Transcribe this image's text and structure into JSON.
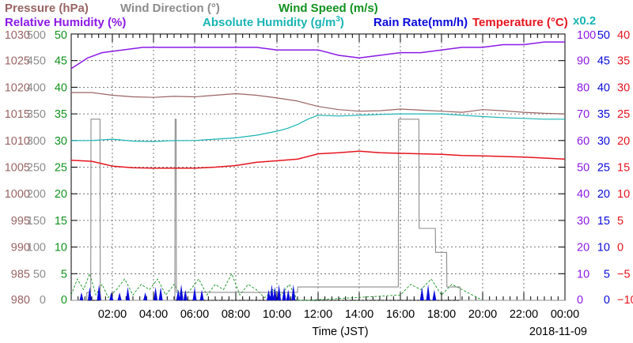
{
  "legend": {
    "pressure": "Pressure (hPa)",
    "wind_direction": "Wind Direction (°)",
    "wind_speed": "Wind Speed (m/s)",
    "relative_humidity": "Relative Humidity (%)",
    "absolute_humidity_pre": "Absolute Humidity (g/m",
    "absolute_humidity_sup": "3",
    "absolute_humidity_post": ")",
    "rain_rate": "Rain Rate(mm/h)",
    "temperature": "Temperature  (°C)",
    "scale_factor": "x0.2"
  },
  "colors": {
    "pressure": "#9a6464",
    "wind_direction": "#8c8c8c",
    "wind_speed": "#12921e",
    "relative_humidity": "#8b19e6",
    "absolute_humidity": "#19b4b4",
    "rain_rate": "#0a0adc",
    "temperature": "#e6141e",
    "grid": "#555555"
  },
  "chart_data": {
    "type": "line",
    "xlabel": "Time (JST)",
    "date": "2018-11-09",
    "x_ticks": [
      "02:00",
      "04:00",
      "06:00",
      "08:00",
      "10:00",
      "12:00",
      "14:00",
      "16:00",
      "18:00",
      "20:00",
      "22:00",
      "00:00"
    ],
    "xlim_hours": [
      0,
      24
    ],
    "axes": {
      "pressure": {
        "ticks": [
          "1030",
          "1025",
          "1020",
          "1015",
          "1010",
          "1005",
          "1000",
          "995",
          "990",
          "985",
          "980"
        ],
        "ylim": [
          980,
          1030
        ]
      },
      "wind_direction": {
        "ticks": [
          "500",
          "450",
          "400",
          "350",
          "300",
          "250",
          "200",
          "150",
          "100",
          "50",
          "0"
        ],
        "ylim": [
          0,
          500
        ]
      },
      "wind_speed": {
        "ticks": [
          "50",
          "45",
          "40",
          "35",
          "30",
          "25",
          "20",
          "15",
          "10",
          "5",
          "0"
        ],
        "ylim": [
          0,
          50
        ]
      },
      "relative_humidity": {
        "ticks": [
          "100",
          "90",
          "80",
          "70",
          "60",
          "50",
          "40",
          "30",
          "20",
          "10",
          "0"
        ],
        "ylim": [
          0,
          100
        ]
      },
      "rain_rate": {
        "ticks": [
          "50",
          "45",
          "40",
          "35",
          "30",
          "25",
          "20",
          "15",
          "10",
          "5",
          "0"
        ],
        "ylim": [
          0,
          50
        ]
      },
      "temperature": {
        "ticks": [
          "40",
          "35",
          "30",
          "25",
          "20",
          "15",
          "10",
          "5",
          "0",
          "−5",
          "−10"
        ],
        "ylim": [
          -10,
          40
        ]
      }
    },
    "series": [
      {
        "name": "Pressure (hPa)",
        "key": "pressure",
        "x": [
          0,
          1,
          2,
          3,
          4,
          5,
          6,
          7,
          8,
          9,
          10,
          11,
          12,
          13,
          14,
          15,
          16,
          17,
          18,
          19,
          20,
          21,
          22,
          23,
          24
        ],
        "y": [
          1019,
          1019,
          1018.5,
          1018.2,
          1018.1,
          1018.3,
          1018.2,
          1018.5,
          1018.8,
          1018.5,
          1018,
          1017.4,
          1016.4,
          1015.8,
          1015.5,
          1015.6,
          1015.9,
          1015.7,
          1015.5,
          1015.3,
          1015.8,
          1015.6,
          1015.3,
          1015.1,
          1015
        ]
      },
      {
        "name": "Wind Direction (°)",
        "key": "wind_direction",
        "x": [
          0,
          0.75,
          0.76,
          0.95,
          0.96,
          1.4,
          1.41,
          1.45,
          5.04,
          5.05,
          5.1,
          5.11,
          11,
          11.01,
          15.9,
          15.91,
          16.9,
          16.91,
          17.7,
          17.71,
          18.25,
          18.26,
          18.9,
          18.91,
          24
        ],
        "y": [
          0,
          0,
          15,
          15,
          340,
          340,
          15,
          0,
          0,
          340,
          340,
          15,
          15,
          25,
          25,
          340,
          340,
          135,
          135,
          90,
          90,
          25,
          25,
          0,
          0
        ]
      },
      {
        "name": "Wind Speed (m/s)",
        "key": "wind_speed",
        "x": [
          0,
          0.3,
          0.6,
          0.9,
          1.2,
          1.5,
          1.8,
          2.2,
          2.6,
          3.0,
          3.4,
          3.8,
          4.2,
          4.6,
          5.0,
          5.4,
          5.8,
          6.2,
          6.6,
          7.0,
          7.4,
          7.8,
          8.2,
          8.6,
          9.0,
          9.4,
          9.8,
          10.2,
          10.6,
          11.0,
          11.5,
          16.0,
          16.5,
          17.0,
          17.5,
          18.0,
          18.5,
          19.0,
          19.5,
          20.0,
          24
        ],
        "y": [
          1,
          4,
          2,
          5,
          1,
          3,
          0.5,
          2,
          4,
          1,
          3,
          2,
          4,
          1,
          3,
          0.5,
          2,
          4,
          1,
          3,
          2,
          5,
          1,
          3,
          2,
          0.5,
          2,
          1,
          3,
          0,
          0,
          1,
          3,
          2,
          4,
          1,
          3,
          2,
          1,
          0,
          0
        ]
      },
      {
        "name": "Relative Humidity (%)",
        "key": "relative_humidity",
        "x": [
          0,
          0.4,
          0.8,
          1.5,
          2.5,
          3.5,
          4.5,
          6,
          7,
          8,
          9,
          10,
          11,
          12,
          13,
          14,
          15,
          16,
          17,
          18,
          19,
          20,
          21,
          22,
          23,
          24
        ],
        "y": [
          87,
          89,
          91,
          93,
          94,
          95,
          95,
          95,
          95,
          95,
          95,
          94,
          94,
          94,
          92,
          91,
          92,
          93,
          93,
          94,
          95,
          95,
          96,
          96,
          97,
          97
        ]
      },
      {
        "name": "Absolute Humidity (g/m3) x0.2",
        "key": "absolute_humidity",
        "x": [
          0,
          1,
          2,
          3,
          4,
          5,
          6,
          7,
          8,
          9,
          10,
          10.5,
          11,
          11.5,
          12,
          13,
          14,
          15,
          16,
          17,
          18,
          19,
          20,
          21,
          22,
          23,
          24
        ],
        "y": [
          60,
          60,
          60.5,
          59.8,
          59.6,
          60,
          60,
          60.5,
          61,
          62,
          63.5,
          64.5,
          66,
          68,
          69.5,
          69.2,
          69.5,
          69.8,
          70,
          70,
          70,
          69.5,
          69,
          68.6,
          68.3,
          68,
          68
        ]
      },
      {
        "name": "Rain Rate(mm/h)",
        "key": "rain_rate",
        "x": [
          0.5,
          0.9,
          1.35,
          1.95,
          2.35,
          2.75,
          3.6,
          4.1,
          4.35,
          5.2,
          5.35,
          5.55,
          6.0,
          6.35,
          9.6,
          9.75,
          9.9,
          10.1,
          10.35,
          10.55,
          10.8,
          17.05,
          17.35,
          17.65
        ],
        "y": [
          1.5,
          2.5,
          3,
          1.5,
          1.5,
          2.5,
          1.5,
          2.5,
          2.5,
          2,
          3,
          2,
          2.5,
          2,
          2,
          3,
          2.5,
          3,
          2.5,
          2,
          3,
          2.5,
          3,
          2
        ]
      },
      {
        "name": "Temperature (°C)",
        "key": "temperature",
        "x": [
          0,
          1,
          2,
          3,
          4,
          5,
          6,
          7,
          8,
          9,
          10,
          11,
          12,
          13,
          14,
          15,
          16,
          17,
          18,
          19,
          20,
          21,
          22,
          23,
          24
        ],
        "y": [
          16.3,
          16.1,
          15.2,
          14.9,
          14.8,
          14.8,
          14.8,
          15.0,
          15.3,
          15.9,
          16.2,
          16.5,
          17.5,
          17.7,
          18.0,
          17.7,
          17.6,
          17.5,
          17.4,
          17.2,
          17.1,
          17.0,
          16.9,
          16.7,
          16.5
        ]
      }
    ]
  }
}
